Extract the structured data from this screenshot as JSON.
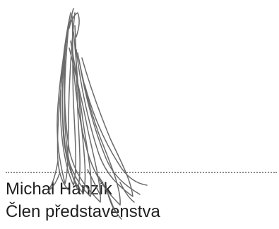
{
  "signature": {
    "name": "Michal Hanzík",
    "role": "Člen představenstva",
    "ink_color": "#5a5a5a",
    "text_color": "#1f1f1f",
    "line_color": "#8a8a8a"
  }
}
